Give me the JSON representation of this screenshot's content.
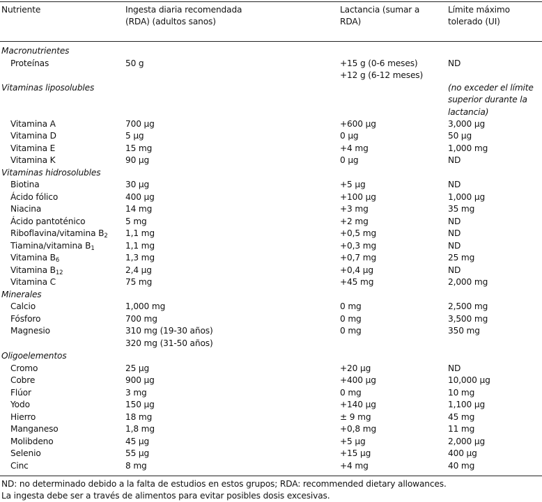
{
  "header": {
    "nutriente": "Nutriente",
    "rda": "Ingesta diaria recomendada (RDA) (adultos sanos)",
    "lactancia": "Lactancia (sumar a RDA)",
    "limite": "Límite máximo tolerado (UI)"
  },
  "sections": {
    "macro": {
      "title": "Macronutrientes",
      "rows": [
        {
          "name": "Proteínas",
          "rda": "50 g",
          "lact": [
            "+15 g (0-6 meses)",
            "+12 g (6-12 meses)"
          ],
          "lim": "ND"
        }
      ]
    },
    "lipo": {
      "title": "Vitaminas liposolubles",
      "note": "(no exceder el límite superior durante la lactancia)",
      "rows": [
        {
          "name": "Vitamina A",
          "rda": "700 μg",
          "lact": "+600 μg",
          "lim": "3,000 μg"
        },
        {
          "name": "Vitamina D",
          "rda": "5 μg",
          "lact": "0 μg",
          "lim": "50 μg"
        },
        {
          "name": "Vitamina E",
          "rda": "15 mg",
          "lact": "+4 mg",
          "lim": "1,000 mg"
        },
        {
          "name": "Vitamina K",
          "rda": "90 μg",
          "lact": "0 μg",
          "lim": "ND"
        }
      ]
    },
    "hidro": {
      "title": "Vitaminas hidrosolubles",
      "rows": [
        {
          "name": "Biotina",
          "rda": "30 μg",
          "lact": "+5 μg",
          "lim": "ND"
        },
        {
          "name": "Ácido fólico",
          "rda": "400 μg",
          "lact": "+100 μg",
          "lim": "1,000 μg"
        },
        {
          "name": "Niacina",
          "rda": "14 mg",
          "lact": "+3 mg",
          "lim": "35 mg"
        },
        {
          "name": "Ácido pantoténico",
          "rda": "5 mg",
          "lact": "+2 mg",
          "lim": "ND"
        },
        {
          "name": "Riboflavina/vitamina B",
          "sub": "2",
          "rda": "1,1 mg",
          "lact": "+0,5 mg",
          "lim": "ND"
        },
        {
          "name": "Tiamina/vitamina B",
          "sub": "1",
          "rda": "1,1 mg",
          "lact": "+0,3 mg",
          "lim": "ND"
        },
        {
          "name": "Vitamina B",
          "sub": "6",
          "rda": "1,3 mg",
          "lact": "+0,7 mg",
          "lim": "25 mg"
        },
        {
          "name": "Vitamina B",
          "sub": "12",
          "rda": "2,4 μg",
          "lact": "+0,4 μg",
          "lim": "ND"
        },
        {
          "name": "Vitamina C",
          "rda": "75 mg",
          "lact": "+45 mg",
          "lim": "2,000 mg"
        }
      ]
    },
    "minerales": {
      "title": "Minerales",
      "rows": [
        {
          "name": "Calcio",
          "rda": "1,000 mg",
          "lact": "0 mg",
          "lim": "2,500 mg"
        },
        {
          "name": "Fósforo",
          "rda": "700 mg",
          "lact": "0 mg",
          "lim": "3,500 mg"
        },
        {
          "name": "Magnesio",
          "rda": [
            "310 mg (19-30 años)",
            "320 mg (31-50 años)"
          ],
          "lact": "0 mg",
          "lim": "350 mg"
        }
      ]
    },
    "oligo": {
      "title": "Oligoelementos",
      "rows": [
        {
          "name": "Cromo",
          "rda": "25 μg",
          "lact": "+20 μg",
          "lim": "ND"
        },
        {
          "name": "Cobre",
          "rda": "900 μg",
          "lact": "+400 μg",
          "lim": "10,000 μg"
        },
        {
          "name": "Flúor",
          "rda": "3 mg",
          "lact": "0 mg",
          "lim": "10 mg"
        },
        {
          "name": "Yodo",
          "rda": "150 μg",
          "lact": "+140 μg",
          "lim": "1,100 μg"
        },
        {
          "name": "Hierro",
          "rda": "18 mg",
          "lact": "± 9 mg",
          "lim": "45 mg"
        },
        {
          "name": "Manganeso",
          "rda": "1,8 mg",
          "lact": "+0,8 mg",
          "lim": "11 mg"
        },
        {
          "name": "Molibdeno",
          "rda": "45 μg",
          "lact": "+5 μg",
          "lim": "2,000 μg"
        },
        {
          "name": "Selenio",
          "rda": "55 μg",
          "lact": "+15 μg",
          "lim": "400 μg"
        },
        {
          "name": "Cinc",
          "rda": "8 mg",
          "lact": "+4 mg",
          "lim": "40 mg"
        }
      ]
    }
  },
  "footer": {
    "line1": "ND: no determinado debido a la falta de estudios en estos grupos; RDA: recommended dietary allowances.",
    "line2": "La ingesta debe ser a través de alimentos para evitar posibles dosis excesivas."
  }
}
